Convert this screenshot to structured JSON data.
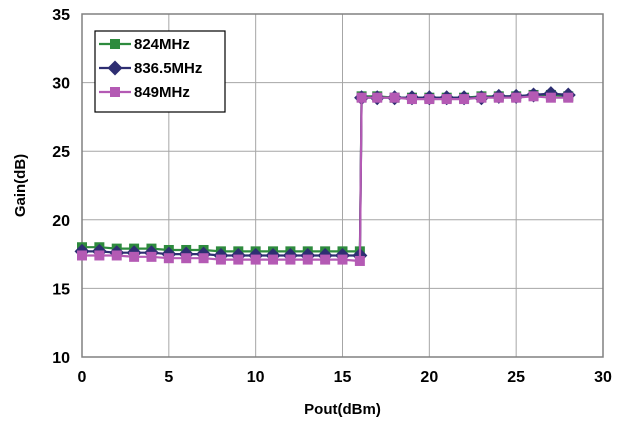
{
  "chart_data": {
    "type": "line",
    "xlabel": "Pout(dBm)",
    "ylabel": "Gain(dB)",
    "xlim": [
      0,
      30
    ],
    "ylim": [
      10,
      35
    ],
    "xticks": [
      0,
      5,
      10,
      15,
      20,
      25,
      30
    ],
    "yticks": [
      10,
      15,
      20,
      25,
      30,
      35
    ],
    "grid": true,
    "legend_position": "top-left",
    "series": [
      {
        "name": "824MHz",
        "color": "#2e8b3e",
        "marker": "square",
        "x": [
          0,
          1,
          2,
          3,
          4,
          5,
          6,
          7,
          8,
          9,
          10,
          11,
          12,
          13,
          14,
          15,
          16,
          16.1,
          17,
          18,
          19,
          20,
          21,
          22,
          23,
          24,
          25,
          26,
          27,
          28
        ],
        "y": [
          18.0,
          18.0,
          17.9,
          17.9,
          17.9,
          17.8,
          17.8,
          17.8,
          17.7,
          17.7,
          17.7,
          17.7,
          17.7,
          17.7,
          17.7,
          17.7,
          17.7,
          29.0,
          29.0,
          28.9,
          28.9,
          28.9,
          28.9,
          28.9,
          29.0,
          29.0,
          29.0,
          29.1,
          29.1,
          29.0
        ]
      },
      {
        "name": "836.5MHz",
        "color": "#2e2e72",
        "marker": "diamond",
        "x": [
          0,
          1,
          2,
          3,
          4,
          5,
          6,
          7,
          8,
          9,
          10,
          11,
          12,
          13,
          14,
          15,
          16,
          16.1,
          17,
          18,
          19,
          20,
          21,
          22,
          23,
          24,
          25,
          26,
          27,
          28
        ],
        "y": [
          17.7,
          17.7,
          17.6,
          17.6,
          17.6,
          17.5,
          17.5,
          17.5,
          17.4,
          17.4,
          17.4,
          17.4,
          17.4,
          17.4,
          17.4,
          17.4,
          17.4,
          28.9,
          28.9,
          28.9,
          28.9,
          28.9,
          28.9,
          28.9,
          28.9,
          29.0,
          29.0,
          29.1,
          29.2,
          29.1
        ]
      },
      {
        "name": "849MHz",
        "color": "#b45ab4",
        "marker": "square",
        "x": [
          0,
          1,
          2,
          3,
          4,
          5,
          6,
          7,
          8,
          9,
          10,
          11,
          12,
          13,
          14,
          15,
          16,
          16.1,
          17,
          18,
          19,
          20,
          21,
          22,
          23,
          24,
          25,
          26,
          27,
          28
        ],
        "y": [
          17.4,
          17.4,
          17.4,
          17.3,
          17.3,
          17.2,
          17.2,
          17.2,
          17.1,
          17.1,
          17.1,
          17.1,
          17.1,
          17.1,
          17.1,
          17.1,
          17.0,
          28.9,
          28.9,
          28.9,
          28.8,
          28.8,
          28.8,
          28.8,
          28.9,
          28.9,
          28.9,
          29.0,
          28.9,
          28.9
        ]
      }
    ]
  }
}
